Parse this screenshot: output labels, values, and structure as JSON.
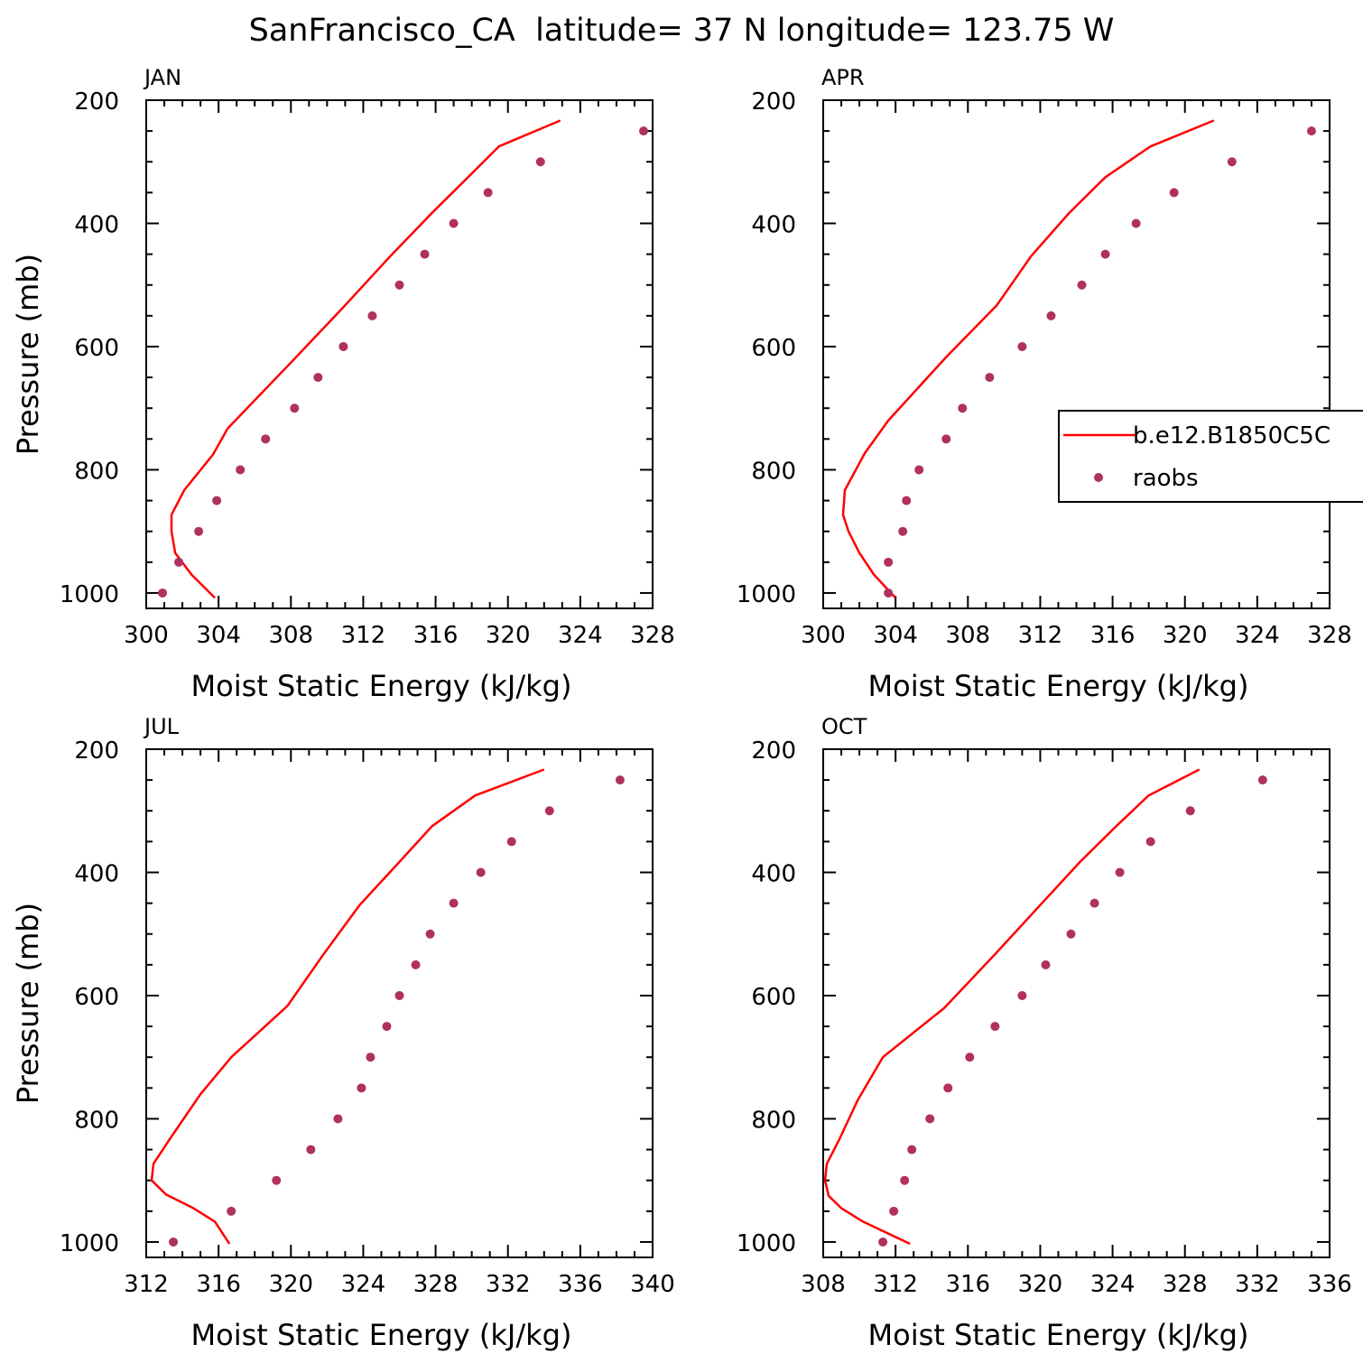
{
  "figure": {
    "title": "SanFrancisco_CA  latitude= 37 N longitude= 123.75 W"
  },
  "legend": {
    "model_label": "b.e12.B1850C5C",
    "obs_label": "raobs"
  },
  "colors": {
    "model_line": "#ff0000",
    "obs_marker": "#b03060",
    "axes": "#000000"
  },
  "chart_data": [
    {
      "type": "line",
      "title": "JAN",
      "xlabel": "Moist Static Energy (kJ/kg)",
      "ylabel": "Pressure (mb)",
      "xlim": [
        300,
        328
      ],
      "ylim": [
        1025,
        200
      ],
      "xticks": [
        300,
        304,
        308,
        312,
        316,
        320,
        324,
        328
      ],
      "yticks": [
        200,
        400,
        600,
        800,
        1000
      ],
      "series": [
        {
          "name": "b.e12.B1850C5C",
          "style": "line",
          "x": [
            322.9,
            319.5,
            317.8,
            315.8,
            313.5,
            311.0,
            308.0,
            304.5,
            303.7,
            302.1,
            301.4,
            301.4,
            301.6,
            302.5,
            303.8
          ],
          "y": [
            233,
            275,
            325,
            383,
            453,
            533,
            626,
            733,
            775,
            833,
            873,
            900,
            935,
            970,
            1008
          ]
        },
        {
          "name": "raobs",
          "style": "markers",
          "x": [
            327.5,
            321.8,
            318.9,
            317.0,
            315.4,
            314.0,
            312.5,
            310.9,
            309.5,
            308.2,
            306.6,
            305.2,
            303.9,
            302.9,
            301.8,
            300.9
          ],
          "y": [
            250,
            300,
            350,
            400,
            450,
            500,
            550,
            600,
            650,
            700,
            750,
            800,
            850,
            900,
            950,
            1000
          ]
        }
      ]
    },
    {
      "type": "line",
      "title": "APR",
      "xlabel": "Moist Static Energy (kJ/kg)",
      "ylabel": "",
      "xlim": [
        300,
        328
      ],
      "ylim": [
        1025,
        200
      ],
      "xticks": [
        300,
        304,
        308,
        312,
        316,
        320,
        324,
        328
      ],
      "yticks": [
        200,
        400,
        600,
        800,
        1000
      ],
      "series": [
        {
          "name": "b.e12.B1850C5C",
          "style": "line",
          "x": [
            321.6,
            318.1,
            315.6,
            313.6,
            311.5,
            309.6,
            306.8,
            303.6,
            302.3,
            301.2,
            301.1,
            301.4,
            302.0,
            302.8,
            304.0
          ],
          "y": [
            233,
            275,
            325,
            383,
            453,
            533,
            617,
            720,
            773,
            833,
            873,
            900,
            935,
            970,
            1008
          ]
        },
        {
          "name": "raobs",
          "style": "markers",
          "x": [
            327.0,
            322.6,
            319.4,
            317.3,
            315.6,
            314.3,
            312.6,
            311.0,
            309.2,
            307.7,
            306.8,
            305.3,
            304.6,
            304.4,
            303.6,
            303.6
          ],
          "y": [
            250,
            300,
            350,
            400,
            450,
            500,
            550,
            600,
            650,
            700,
            750,
            800,
            850,
            900,
            950,
            1000
          ]
        }
      ]
    },
    {
      "type": "line",
      "title": "JUL",
      "xlabel": "Moist Static Energy (kJ/kg)",
      "ylabel": "Pressure (mb)",
      "xlim": [
        312,
        340
      ],
      "ylim": [
        1025,
        200
      ],
      "xticks": [
        312,
        316,
        320,
        324,
        328,
        332,
        336,
        340
      ],
      "yticks": [
        200,
        400,
        600,
        800,
        1000
      ],
      "series": [
        {
          "name": "b.e12.B1850C5C",
          "style": "line",
          "x": [
            334.0,
            330.2,
            327.8,
            326.0,
            323.8,
            321.8,
            319.8,
            316.7,
            315.0,
            313.3,
            312.4,
            312.3,
            313.1,
            314.6,
            315.8,
            316.6
          ],
          "y": [
            233,
            275,
            325,
            383,
            453,
            533,
            617,
            700,
            760,
            833,
            873,
            900,
            923,
            945,
            967,
            1003
          ]
        },
        {
          "name": "raobs",
          "style": "markers",
          "x": [
            338.2,
            334.3,
            332.2,
            330.5,
            329.0,
            327.7,
            326.9,
            326.0,
            325.3,
            324.4,
            323.9,
            322.6,
            321.1,
            319.2,
            316.7,
            313.5
          ],
          "y": [
            250,
            300,
            350,
            400,
            450,
            500,
            550,
            600,
            650,
            700,
            750,
            800,
            850,
            900,
            950,
            1000
          ]
        }
      ]
    },
    {
      "type": "line",
      "title": "OCT",
      "xlabel": "Moist Static Energy (kJ/kg)",
      "ylabel": "",
      "xlim": [
        308,
        336
      ],
      "ylim": [
        1025,
        200
      ],
      "xticks": [
        308,
        312,
        316,
        320,
        324,
        328,
        332,
        336
      ],
      "yticks": [
        200,
        400,
        600,
        800,
        1000
      ],
      "series": [
        {
          "name": "b.e12.B1850C5C",
          "style": "line",
          "x": [
            328.8,
            326.0,
            324.2,
            322.2,
            320.0,
            317.5,
            314.7,
            311.3,
            309.9,
            308.9,
            308.2,
            308.1,
            308.3,
            309.0,
            310.2,
            312.8
          ],
          "y": [
            233,
            275,
            325,
            383,
            453,
            533,
            620,
            700,
            770,
            833,
            873,
            900,
            925,
            945,
            967,
            1003
          ]
        },
        {
          "name": "raobs",
          "style": "markers",
          "x": [
            332.3,
            328.3,
            326.1,
            324.4,
            323.0,
            321.7,
            320.3,
            319.0,
            317.5,
            316.1,
            314.9,
            313.9,
            312.9,
            312.5,
            311.9,
            311.3
          ],
          "y": [
            250,
            300,
            350,
            400,
            450,
            500,
            550,
            600,
            650,
            700,
            750,
            800,
            850,
            900,
            950,
            1000
          ]
        }
      ]
    }
  ]
}
